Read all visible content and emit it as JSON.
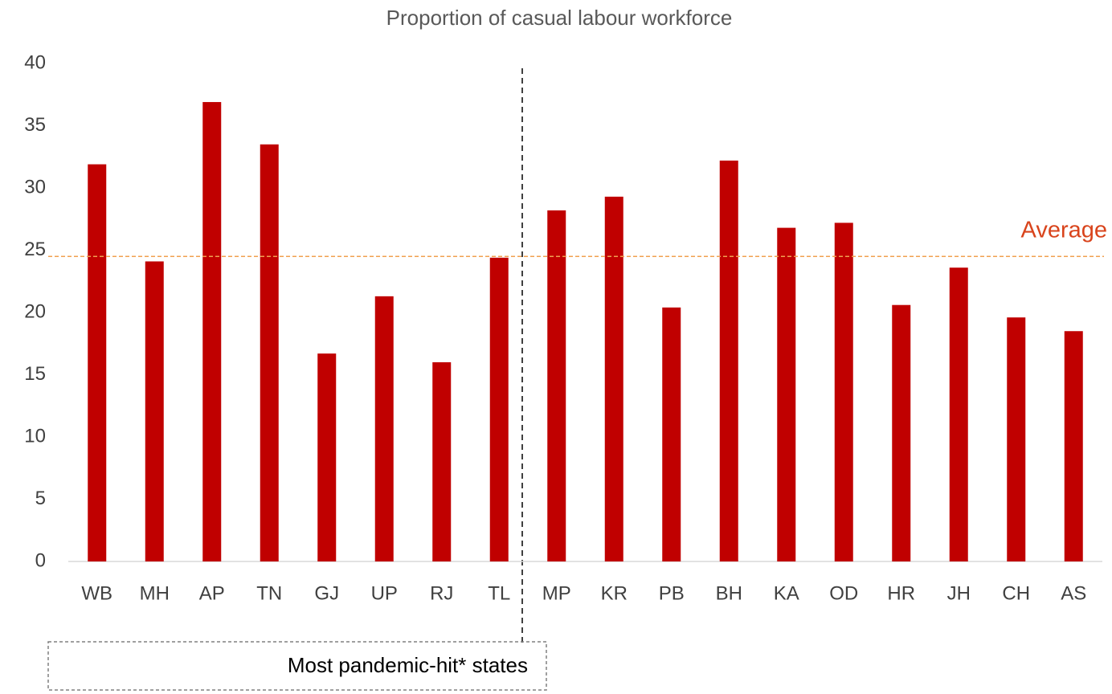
{
  "chart_data": {
    "type": "bar",
    "title": "Proportion of casual labour workforce",
    "categories": [
      "WB",
      "MH",
      "AP",
      "TN",
      "GJ",
      "UP",
      "RJ",
      "TL",
      "MP",
      "KR",
      "PB",
      "BH",
      "KA",
      "OD",
      "HR",
      "JH",
      "CH",
      "AS"
    ],
    "values": [
      31.9,
      24.1,
      36.9,
      33.5,
      16.7,
      21.3,
      16.0,
      24.4,
      28.2,
      29.3,
      20.4,
      32.2,
      26.8,
      27.2,
      20.6,
      23.6,
      19.6,
      18.5
    ],
    "color": "#c00000",
    "ylim": [
      0,
      40
    ],
    "yticks": [
      0,
      5,
      10,
      15,
      20,
      25,
      30,
      35,
      40
    ],
    "average": {
      "label": "Average",
      "value": 24.5
    },
    "group_label": "Most pandemic-hit* states"
  }
}
